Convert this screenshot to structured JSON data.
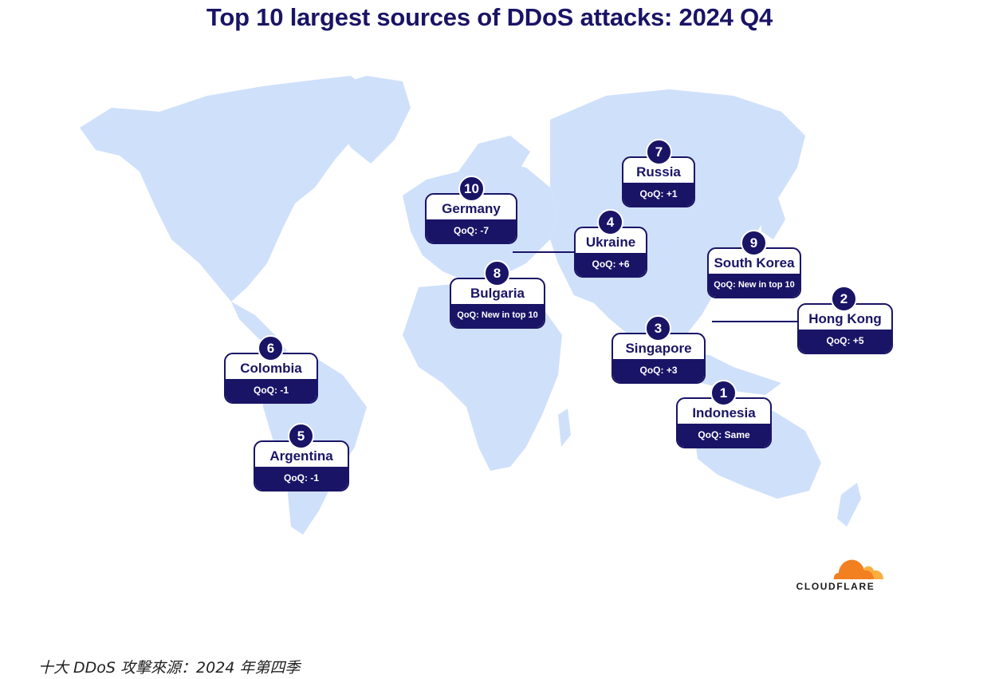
{
  "title": "Top 10 largest sources of DDoS attacks: 2024 Q4",
  "caption": "十大 DDoS 攻擊來源：2024 年第四季",
  "colors": {
    "navy": "#1a1466",
    "land": "#cfe0fb",
    "cloud_orange": "#f38020",
    "cloud_light": "#faae40"
  },
  "logo_text": "CLOUDFLARE",
  "countries": [
    {
      "rank": "10",
      "name": "Germany",
      "qoq": "QoQ: -7"
    },
    {
      "rank": "7",
      "name": "Russia",
      "qoq": "QoQ: +1"
    },
    {
      "rank": "4",
      "name": "Ukraine",
      "qoq": "QoQ: +6"
    },
    {
      "rank": "9",
      "name": "South Korea",
      "qoq": "QoQ: New in top 10"
    },
    {
      "rank": "8",
      "name": "Bulgaria",
      "qoq": "QoQ: New in top 10"
    },
    {
      "rank": "2",
      "name": "Hong Kong",
      "qoq": "QoQ: +5"
    },
    {
      "rank": "3",
      "name": "Singapore",
      "qoq": "QoQ: +3"
    },
    {
      "rank": "6",
      "name": "Colombia",
      "qoq": "QoQ: -1"
    },
    {
      "rank": "1",
      "name": "Indonesia",
      "qoq": "QoQ: Same"
    },
    {
      "rank": "5",
      "name": "Argentina",
      "qoq": "QoQ: -1"
    }
  ]
}
